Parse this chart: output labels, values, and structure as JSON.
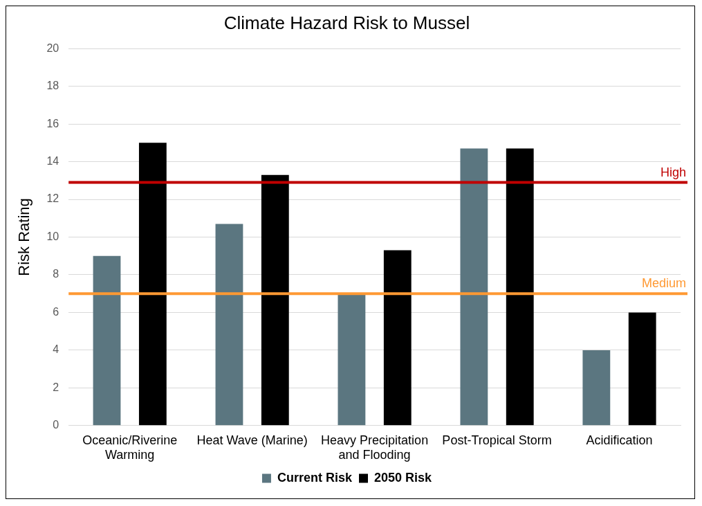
{
  "chart_data": {
    "type": "bar",
    "title": "Climate Hazard Risk to Mussel",
    "ylabel": "Risk Rating",
    "categories": [
      "Oceanic/Riverine Warming",
      "Heat Wave (Marine)",
      "Heavy Precipitation and Flooding",
      "Post-Tropical Storm",
      "Acidification"
    ],
    "series": [
      {
        "name": "Current Risk",
        "color": "#5b7680",
        "values": [
          9,
          10.7,
          7,
          14.7,
          4
        ]
      },
      {
        "name": "2050 Risk",
        "color": "#000000",
        "values": [
          15,
          13.3,
          9.3,
          14.7,
          6
        ]
      }
    ],
    "ylim": [
      0,
      20
    ],
    "yticks": [
      0,
      2,
      4,
      6,
      8,
      10,
      12,
      14,
      16,
      18,
      20
    ],
    "grid": "y",
    "legend": "bottom",
    "ref_lines": [
      {
        "axis": "y",
        "value": 12.9,
        "label": "High",
        "color": "#c00000"
      },
      {
        "axis": "y",
        "value": 7,
        "label": "Medium",
        "color": "#ff9933"
      }
    ]
  }
}
